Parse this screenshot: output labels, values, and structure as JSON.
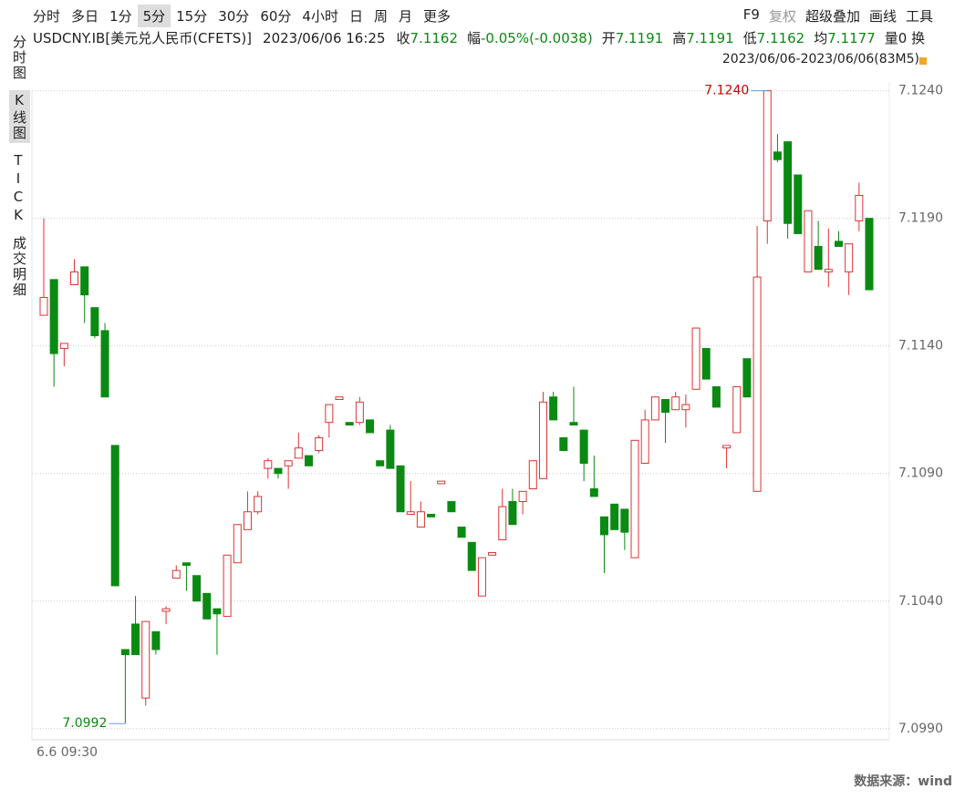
{
  "toolbar": {
    "periods": [
      "分时",
      "多日",
      "1分",
      "5分",
      "15分",
      "30分",
      "60分",
      "4小时",
      "日",
      "周",
      "月",
      "更多"
    ],
    "tools": [
      "F9",
      "复权",
      "超级叠加",
      "画线",
      "工具"
    ]
  },
  "side_tabs": [
    "分时图",
    "K线图",
    "TICK",
    "成交明细"
  ],
  "quote": {
    "symbol": "USDCNY.IB[美元兑人民币(CFETS)]",
    "time": "2023/06/06 16:25",
    "fields": [
      {
        "label": "收",
        "value": "7.1162"
      },
      {
        "label": "幅",
        "value": "-0.05%(-0.0038)"
      },
      {
        "label": "开",
        "value": "7.1191"
      },
      {
        "label": "高",
        "value": "7.1191"
      },
      {
        "label": "低",
        "value": "7.1162"
      },
      {
        "label": "均",
        "value": "7.1177"
      }
    ],
    "volume": "量0",
    "turnover": "换"
  },
  "range": "2023/06/06-2023/06/06(83M5)",
  "source": "数据来源：wind",
  "chart_data": {
    "type": "candlestick",
    "up_color": "#e03232",
    "down_color": "#0a8a12",
    "categories": [
      "6.6 09:30",
      null,
      null,
      null,
      null,
      null,
      null,
      null,
      null,
      null,
      null,
      null,
      null,
      null,
      null,
      null,
      null,
      null,
      null,
      null,
      null,
      null,
      null,
      null,
      null,
      null,
      null,
      null,
      null,
      null,
      null,
      null,
      null,
      null,
      null,
      null,
      null,
      null,
      null,
      null,
      null,
      null,
      null,
      null,
      null,
      null,
      null,
      null,
      null,
      null,
      null,
      null,
      null,
      null,
      null,
      null,
      null,
      null,
      null,
      null,
      null,
      null,
      null,
      null,
      null,
      null,
      null,
      null,
      null,
      null,
      null,
      null,
      null,
      null,
      null,
      null,
      null,
      null,
      null,
      null,
      null,
      null
    ],
    "open": [
      7.1152,
      7.1166,
      7.1139,
      7.1164,
      7.1171,
      7.1155,
      7.1146,
      7.1101,
      7.1021,
      7.1031,
      7.1002,
      7.1028,
      7.1036,
      7.1049,
      7.1055,
      7.105,
      7.1043,
      7.1037,
      7.1034,
      7.1055,
      7.1068,
      7.1075,
      7.1092,
      7.1092,
      7.1093,
      7.1096,
      7.1097,
      7.1099,
      7.111,
      7.1119,
      7.111,
      7.111,
      7.1111,
      7.1095,
      7.1107,
      7.1093,
      7.1074,
      7.1069,
      7.1074,
      7.1086,
      7.1079,
      7.1069,
      7.1063,
      7.1042,
      7.1058,
      7.1064,
      7.1079,
      7.1079,
      7.1084,
      7.1088,
      7.112,
      7.1104,
      7.111,
      7.1107,
      7.1084,
      7.1073,
      7.1078,
      7.1076,
      7.1057,
      7.1094,
      7.1111,
      7.1119,
      7.1115,
      7.1115,
      7.1123,
      7.1139,
      7.1124,
      7.11,
      7.1106,
      7.1135,
      7.1083,
      7.1189,
      7.1216,
      7.122,
      7.1207,
      7.1169,
      7.1179,
      7.1169,
      7.1181,
      7.1169,
      7.1189,
      7.119
    ],
    "high": [
      7.119,
      7.1166,
      7.1141,
      7.1174,
      7.1171,
      7.1155,
      7.1149,
      7.1101,
      7.1021,
      7.1042,
      7.1032,
      7.1028,
      7.1038,
      7.1054,
      7.1055,
      7.105,
      7.1043,
      7.1037,
      7.1058,
      7.107,
      7.1083,
      7.1083,
      7.1096,
      7.1092,
      7.1095,
      7.1106,
      7.1097,
      7.1105,
      7.1117,
      7.112,
      7.111,
      7.112,
      7.1111,
      7.1095,
      7.1109,
      7.1093,
      7.1087,
      7.1079,
      7.1074,
      7.1087,
      7.1079,
      7.1069,
      7.1063,
      7.1057,
      7.1059,
      7.1084,
      7.1084,
      7.1083,
      7.1095,
      7.1122,
      7.1122,
      7.1104,
      7.1124,
      7.1107,
      7.1097,
      7.1073,
      7.1078,
      7.1076,
      7.1103,
      7.1115,
      7.112,
      7.1119,
      7.1122,
      7.1121,
      7.1147,
      7.1139,
      7.1124,
      7.1101,
      7.1124,
      7.1135,
      7.1187,
      7.124,
      7.1223,
      7.122,
      7.1207,
      7.1193,
      7.1189,
      7.1186,
      7.1185,
      7.118,
      7.1204,
      7.119
    ],
    "low": [
      7.1152,
      7.1124,
      7.1132,
      7.1164,
      7.1149,
      7.1143,
      7.112,
      7.1046,
      7.0992,
      7.1019,
      7.0999,
      7.1019,
      7.1031,
      7.1049,
      7.1044,
      7.104,
      7.1033,
      7.1019,
      7.1034,
      7.1055,
      7.1068,
      7.1074,
      7.1088,
      7.1088,
      7.1084,
      7.1096,
      7.1093,
      7.1098,
      7.1104,
      7.1119,
      7.1109,
      7.1109,
      7.1106,
      7.1093,
      7.1092,
      7.1075,
      7.1074,
      7.1069,
      7.1073,
      7.1086,
      7.1075,
      7.1065,
      7.1052,
      7.1042,
      7.1058,
      7.1064,
      7.107,
      7.1074,
      7.1084,
      7.1088,
      7.1111,
      7.1099,
      7.1109,
      7.1087,
      7.1081,
      7.1051,
      7.1068,
      7.106,
      7.1057,
      7.1094,
      7.1111,
      7.1102,
      7.1115,
      7.1108,
      7.1123,
      7.1127,
      7.1116,
      7.1092,
      7.1106,
      7.112,
      7.1083,
      7.118,
      7.1212,
      7.1182,
      7.1184,
      7.1169,
      7.117,
      7.1163,
      7.1179,
      7.116,
      7.1185,
      7.1162
    ],
    "close": [
      7.1159,
      7.1137,
      7.1141,
      7.1169,
      7.116,
      7.1144,
      7.112,
      7.1046,
      7.1019,
      7.1019,
      7.1032,
      7.1021,
      7.1037,
      7.1052,
      7.1054,
      7.104,
      7.1033,
      7.1035,
      7.1058,
      7.107,
      7.1075,
      7.1081,
      7.1095,
      7.109,
      7.1095,
      7.11,
      7.1093,
      7.1104,
      7.1117,
      7.112,
      7.1109,
      7.1118,
      7.1106,
      7.1093,
      7.1092,
      7.1075,
      7.1075,
      7.1075,
      7.1073,
      7.1087,
      7.1075,
      7.1065,
      7.1052,
      7.1057,
      7.1059,
      7.1077,
      7.107,
      7.1083,
      7.1095,
      7.1118,
      7.1111,
      7.1099,
      7.1109,
      7.1094,
      7.1081,
      7.1066,
      7.1068,
      7.1067,
      7.1103,
      7.1111,
      7.112,
      7.1114,
      7.112,
      7.1117,
      7.1147,
      7.1127,
      7.1116,
      7.1101,
      7.1124,
      7.112,
      7.1167,
      7.124,
      7.1213,
      7.1188,
      7.1184,
      7.1193,
      7.117,
      7.117,
      7.1179,
      7.118,
      7.1199,
      7.1162
    ],
    "ylim": [
      7.0986,
      7.1247
    ],
    "yticks": [
      {
        "value": 7.099,
        "label": "7.0990"
      },
      {
        "value": 7.104,
        "label": "7.1040"
      },
      {
        "value": 7.109,
        "label": "7.1090"
      },
      {
        "value": 7.114,
        "label": "7.1140"
      },
      {
        "value": 7.119,
        "label": "7.1190"
      },
      {
        "value": 7.124,
        "label": "7.1240"
      }
    ],
    "grid": true,
    "annotations": [
      {
        "value": 7.124,
        "label": "7.1240",
        "color": "#cc0000"
      },
      {
        "value": 7.0992,
        "label": "7.0992",
        "color": "#0a8a12"
      }
    ]
  }
}
